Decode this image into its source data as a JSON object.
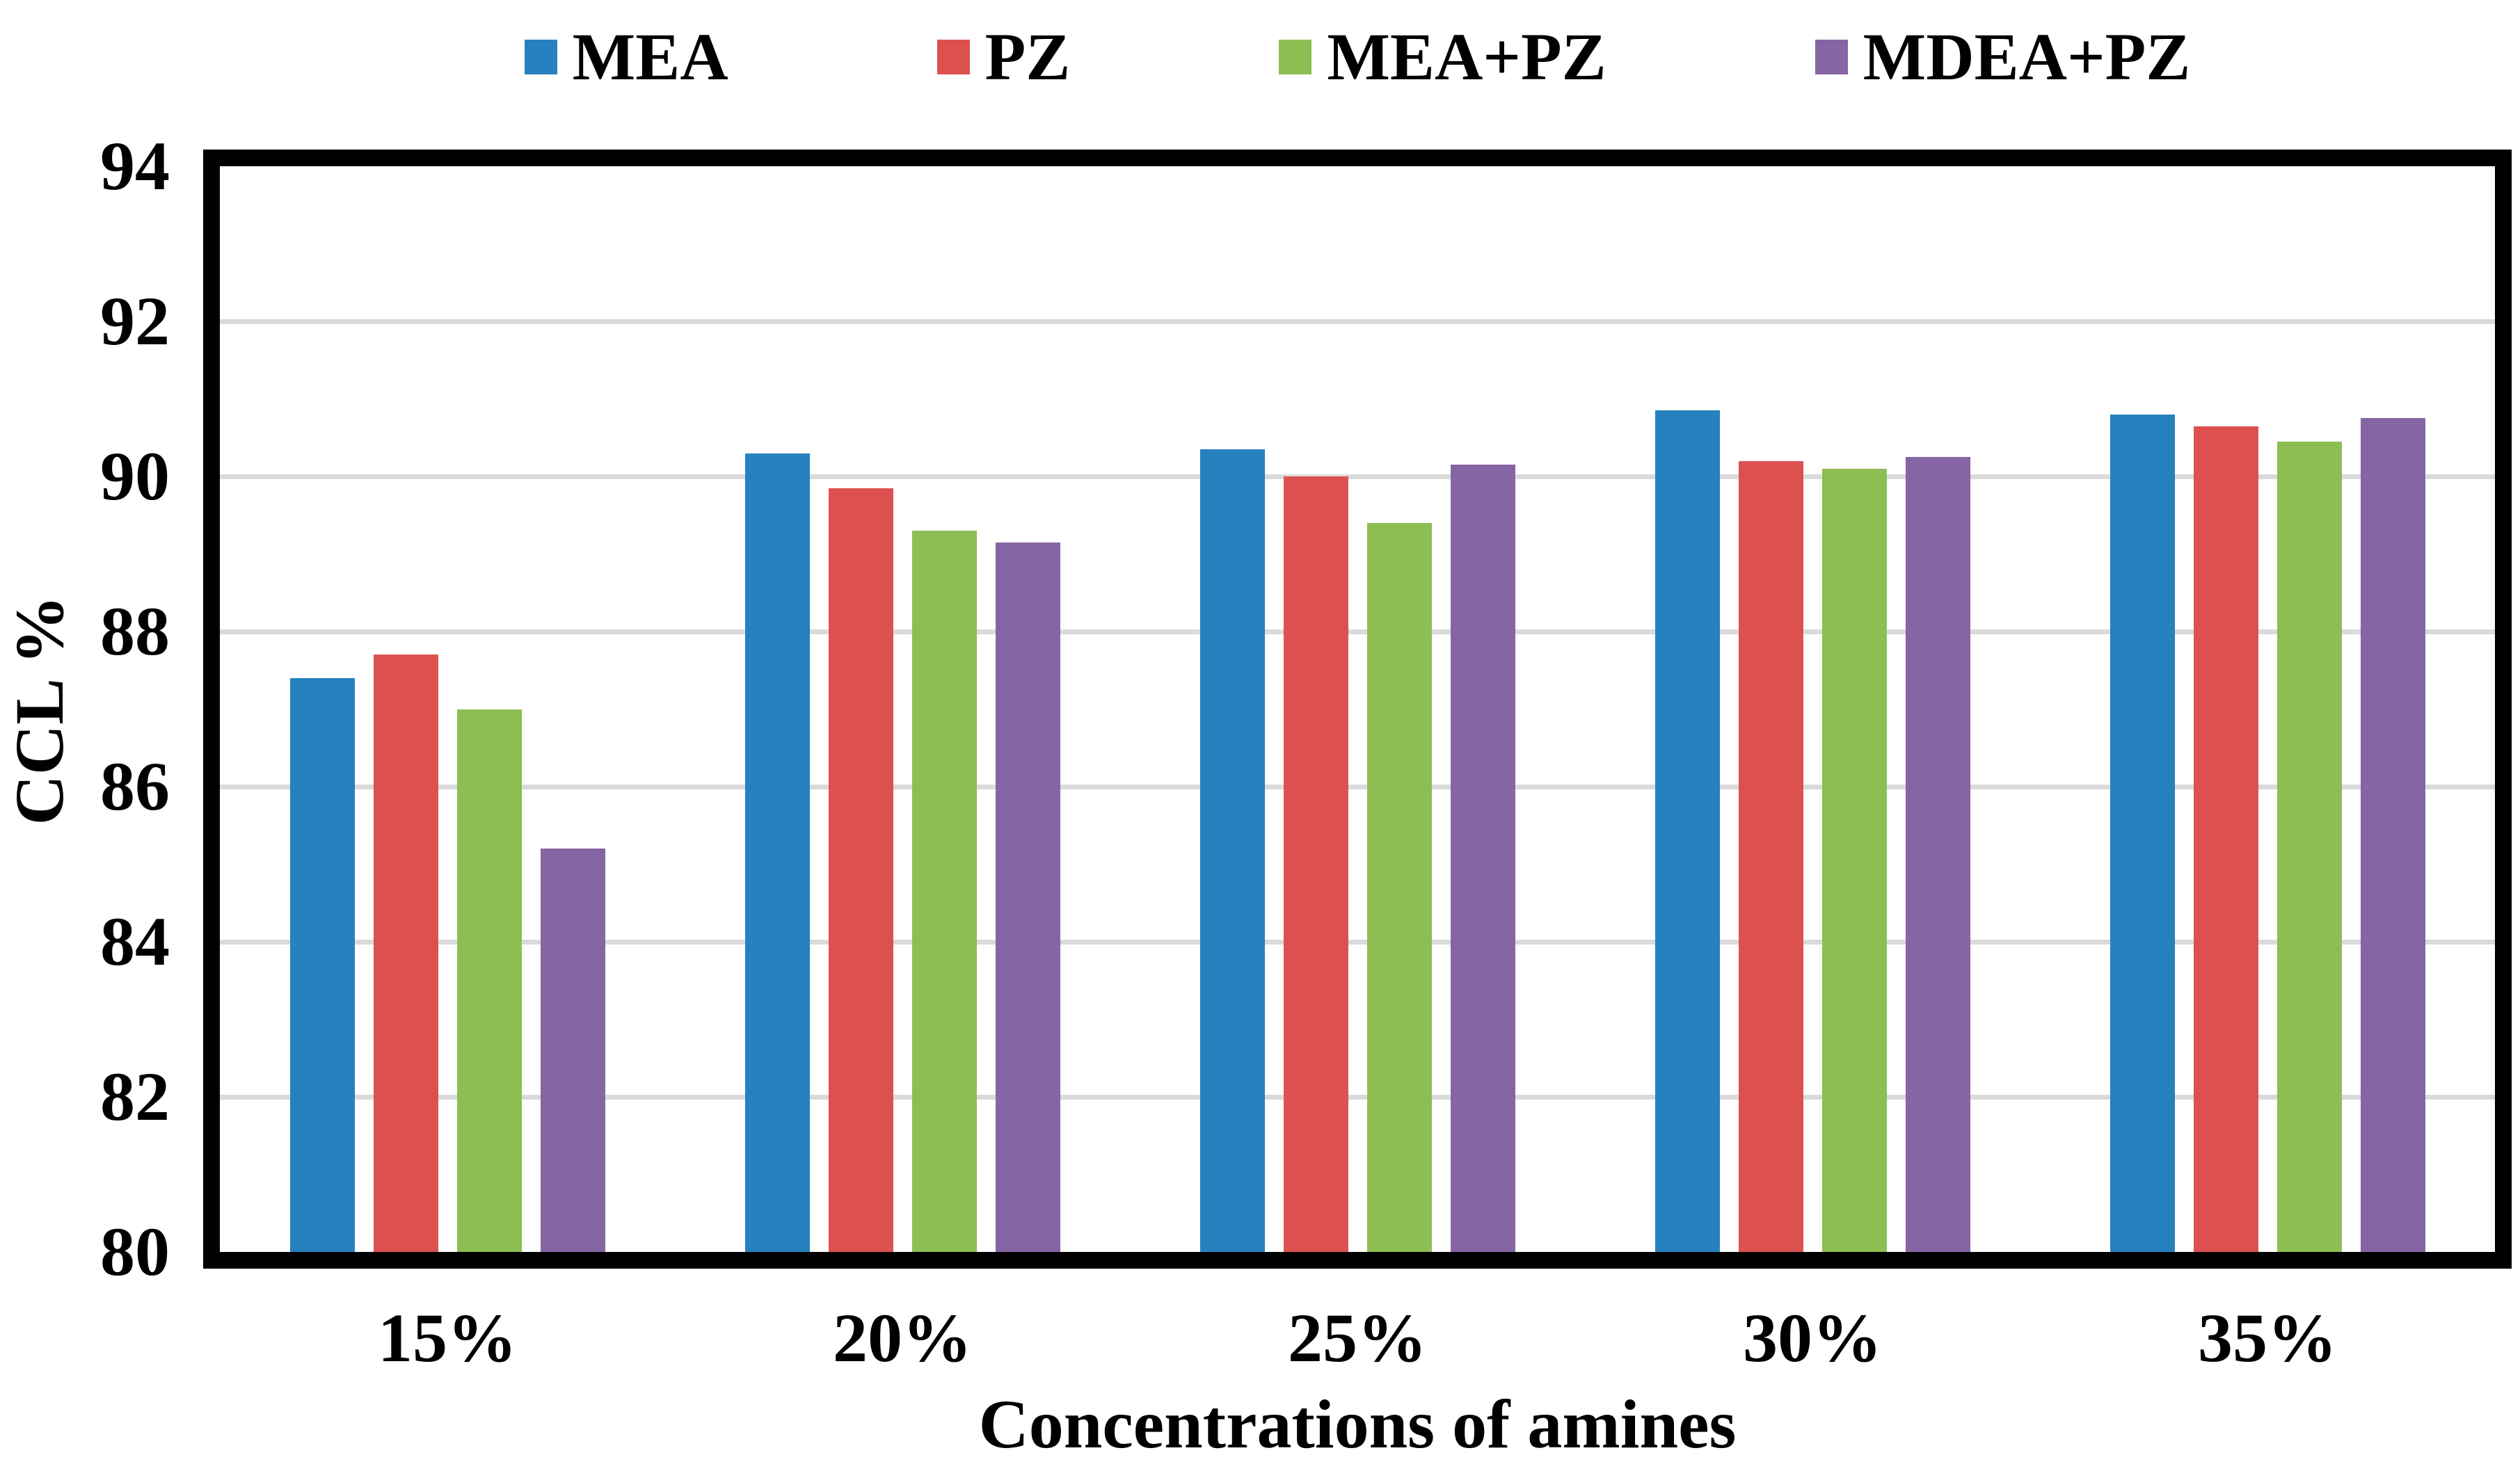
{
  "chart_data": {
    "type": "bar",
    "title": "",
    "categories": [
      "15%",
      "20%",
      "25%",
      "30%",
      "35%"
    ],
    "series": [
      {
        "name": "MEA",
        "color": "#2681BE",
        "values": [
          87.4,
          90.3,
          90.35,
          90.85,
          90.8
        ]
      },
      {
        "name": "PZ",
        "color": "#DC5150",
        "values": [
          87.7,
          89.85,
          90.0,
          90.2,
          90.65
        ]
      },
      {
        "name": "MEA+PZ",
        "color": "#8CBE53",
        "values": [
          87.0,
          89.3,
          89.4,
          90.1,
          90.45
        ]
      },
      {
        "name": "MDEA+PZ",
        "color": "#8665A4",
        "values": [
          85.2,
          89.15,
          90.15,
          90.25,
          90.75
        ]
      }
    ],
    "xlabel": "Concentrations of amines",
    "ylabel": "CCL %",
    "ylim": [
      80,
      94
    ],
    "yticks": [
      80,
      82,
      84,
      86,
      88,
      90,
      92,
      94
    ],
    "grid": "horizontal-only",
    "legend_position": "top-center",
    "colors": {
      "gridline": "#DADADA",
      "frame": "#000000",
      "background": "#FFFFFF"
    }
  }
}
